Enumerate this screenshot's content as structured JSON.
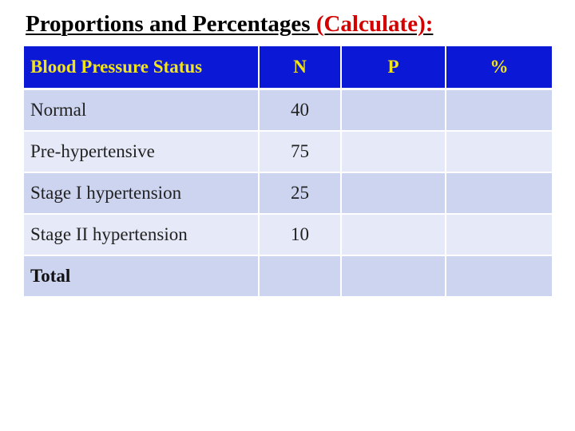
{
  "slide": {
    "title_main": "Proportions and Percentages",
    "title_accent": "(Calculate):"
  },
  "table": {
    "headers": {
      "status": "Blood Pressure Status",
      "n": "N",
      "p": "P",
      "percent": "%"
    },
    "rows": [
      {
        "status": "Normal",
        "n": "40",
        "p": "",
        "percent": ""
      },
      {
        "status": "Pre-hypertensive",
        "n": "75",
        "p": "",
        "percent": ""
      },
      {
        "status": "Stage I hypertension",
        "n": "25",
        "p": "",
        "percent": ""
      },
      {
        "status": "Stage II hypertension",
        "n": "10",
        "p": "",
        "percent": ""
      },
      {
        "status": "Total",
        "n": "",
        "p": "",
        "percent": ""
      }
    ]
  },
  "colors": {
    "header_bg": "#0b18d6",
    "header_text": "#f2e41a",
    "row_band_dark": "#cdd4ef",
    "row_band_light": "#e6e9f7",
    "title_accent": "#d40000"
  }
}
